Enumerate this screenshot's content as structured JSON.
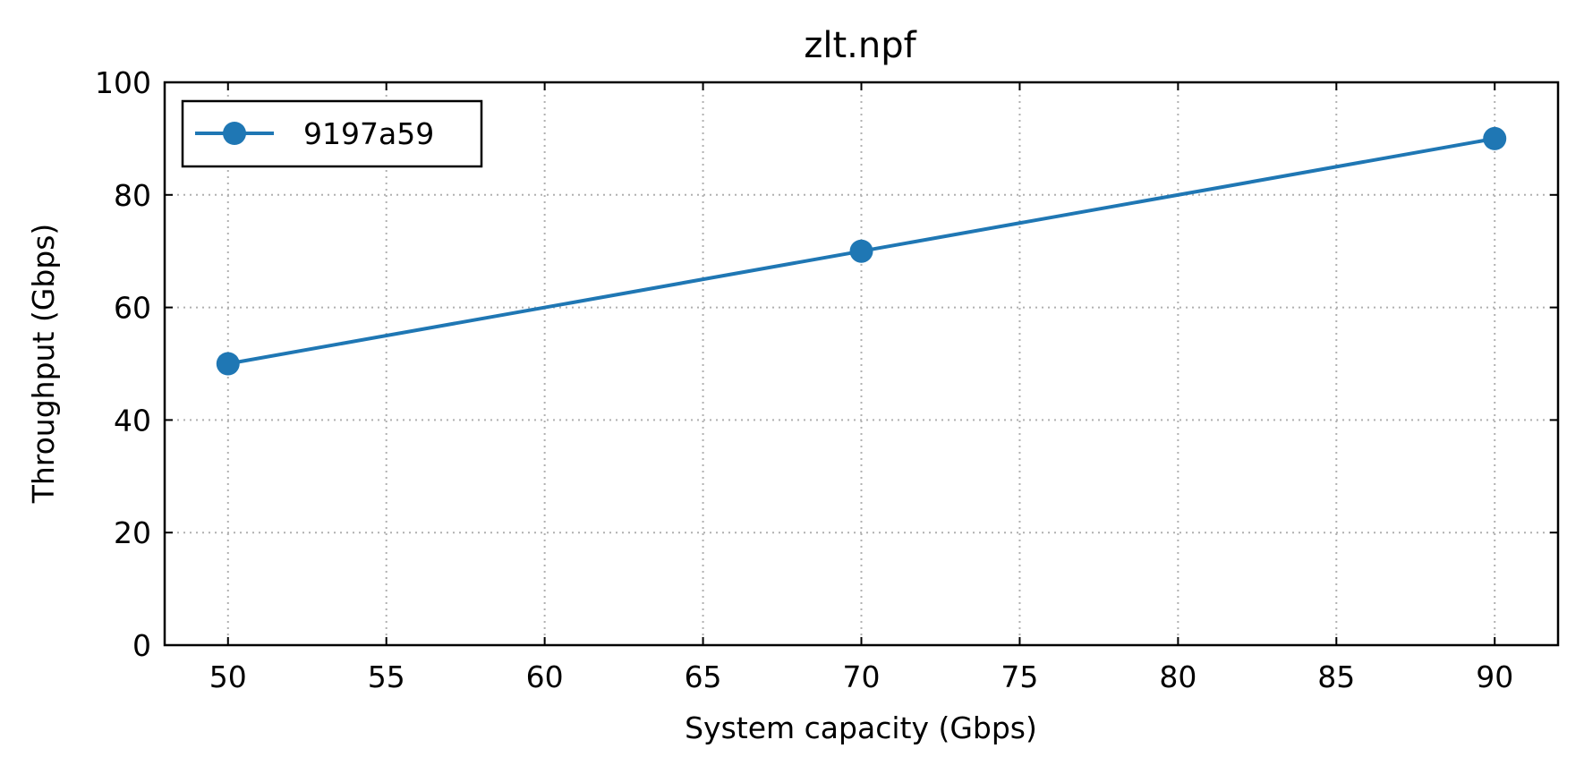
{
  "chart_data": {
    "type": "line",
    "title": "zlt.npf",
    "xlabel": "System capacity (Gbps)",
    "ylabel": "Throughput (Gbps)",
    "xlim": [
      48,
      92
    ],
    "ylim": [
      0,
      100
    ],
    "xticks": [
      50,
      55,
      60,
      65,
      70,
      75,
      80,
      85,
      90
    ],
    "yticks": [
      0,
      20,
      40,
      60,
      80,
      100
    ],
    "grid": true,
    "legend_position": "top-left",
    "series": [
      {
        "name": "9197a59",
        "color": "#1f77b4",
        "marker": "circle",
        "x": [
          50,
          70,
          90
        ],
        "y": [
          50,
          70,
          90
        ]
      }
    ]
  }
}
